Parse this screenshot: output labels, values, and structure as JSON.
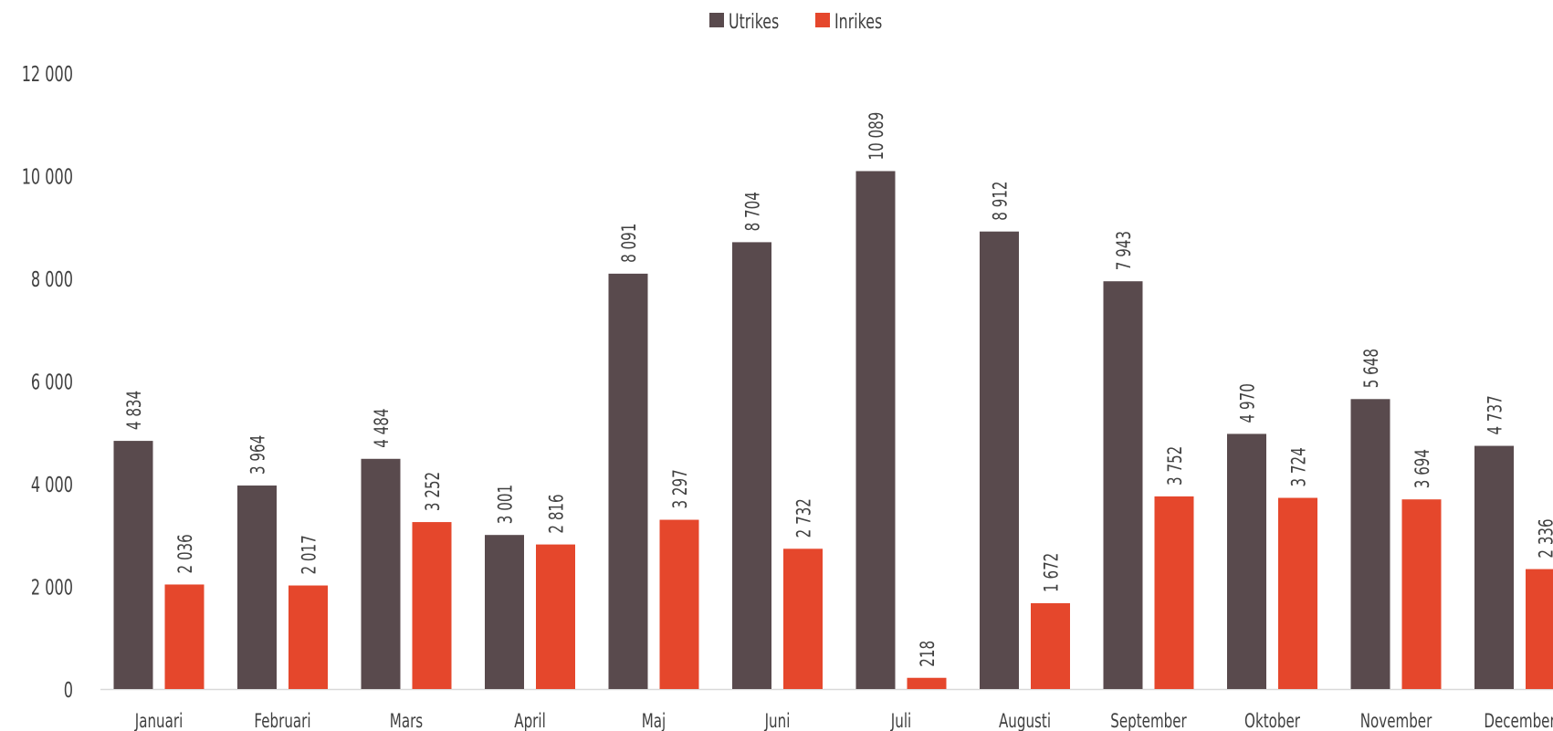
{
  "chart_data": {
    "type": "bar",
    "title": "",
    "xlabel": "",
    "ylabel": "",
    "ylim": [
      0,
      12000
    ],
    "yticks": [
      0,
      2000,
      4000,
      6000,
      8000,
      10000,
      12000
    ],
    "ytick_labels": [
      "0",
      "2 000",
      "4 000",
      "6 000",
      "8 000",
      "10 000",
      "12 000"
    ],
    "grid": false,
    "legend_position": "top",
    "categories": [
      "Januari",
      "Februari",
      "Mars",
      "April",
      "Maj",
      "Juni",
      "Juli",
      "Augusti",
      "September",
      "Oktober",
      "November",
      "December"
    ],
    "series": [
      {
        "name": "Utrikes",
        "color": "#594a4d",
        "values": [
          4834,
          3964,
          4484,
          3001,
          8091,
          8704,
          10089,
          8912,
          7943,
          4970,
          5648,
          4737
        ],
        "labels": [
          "4 834",
          "3 964",
          "4 484",
          "3 001",
          "8 091",
          "8 704",
          "10 089",
          "8 912",
          "7 943",
          "4 970",
          "5 648",
          "4 737"
        ]
      },
      {
        "name": "Inrikes",
        "color": "#e5472c",
        "values": [
          2036,
          2017,
          3252,
          2816,
          3297,
          2732,
          218,
          1672,
          3752,
          3724,
          3694,
          2336
        ],
        "labels": [
          "2 036",
          "2 017",
          "3 252",
          "2 816",
          "3 297",
          "2 732",
          "218",
          "1 672",
          "3 752",
          "3 724",
          "3 694",
          "2 336"
        ]
      }
    ]
  }
}
